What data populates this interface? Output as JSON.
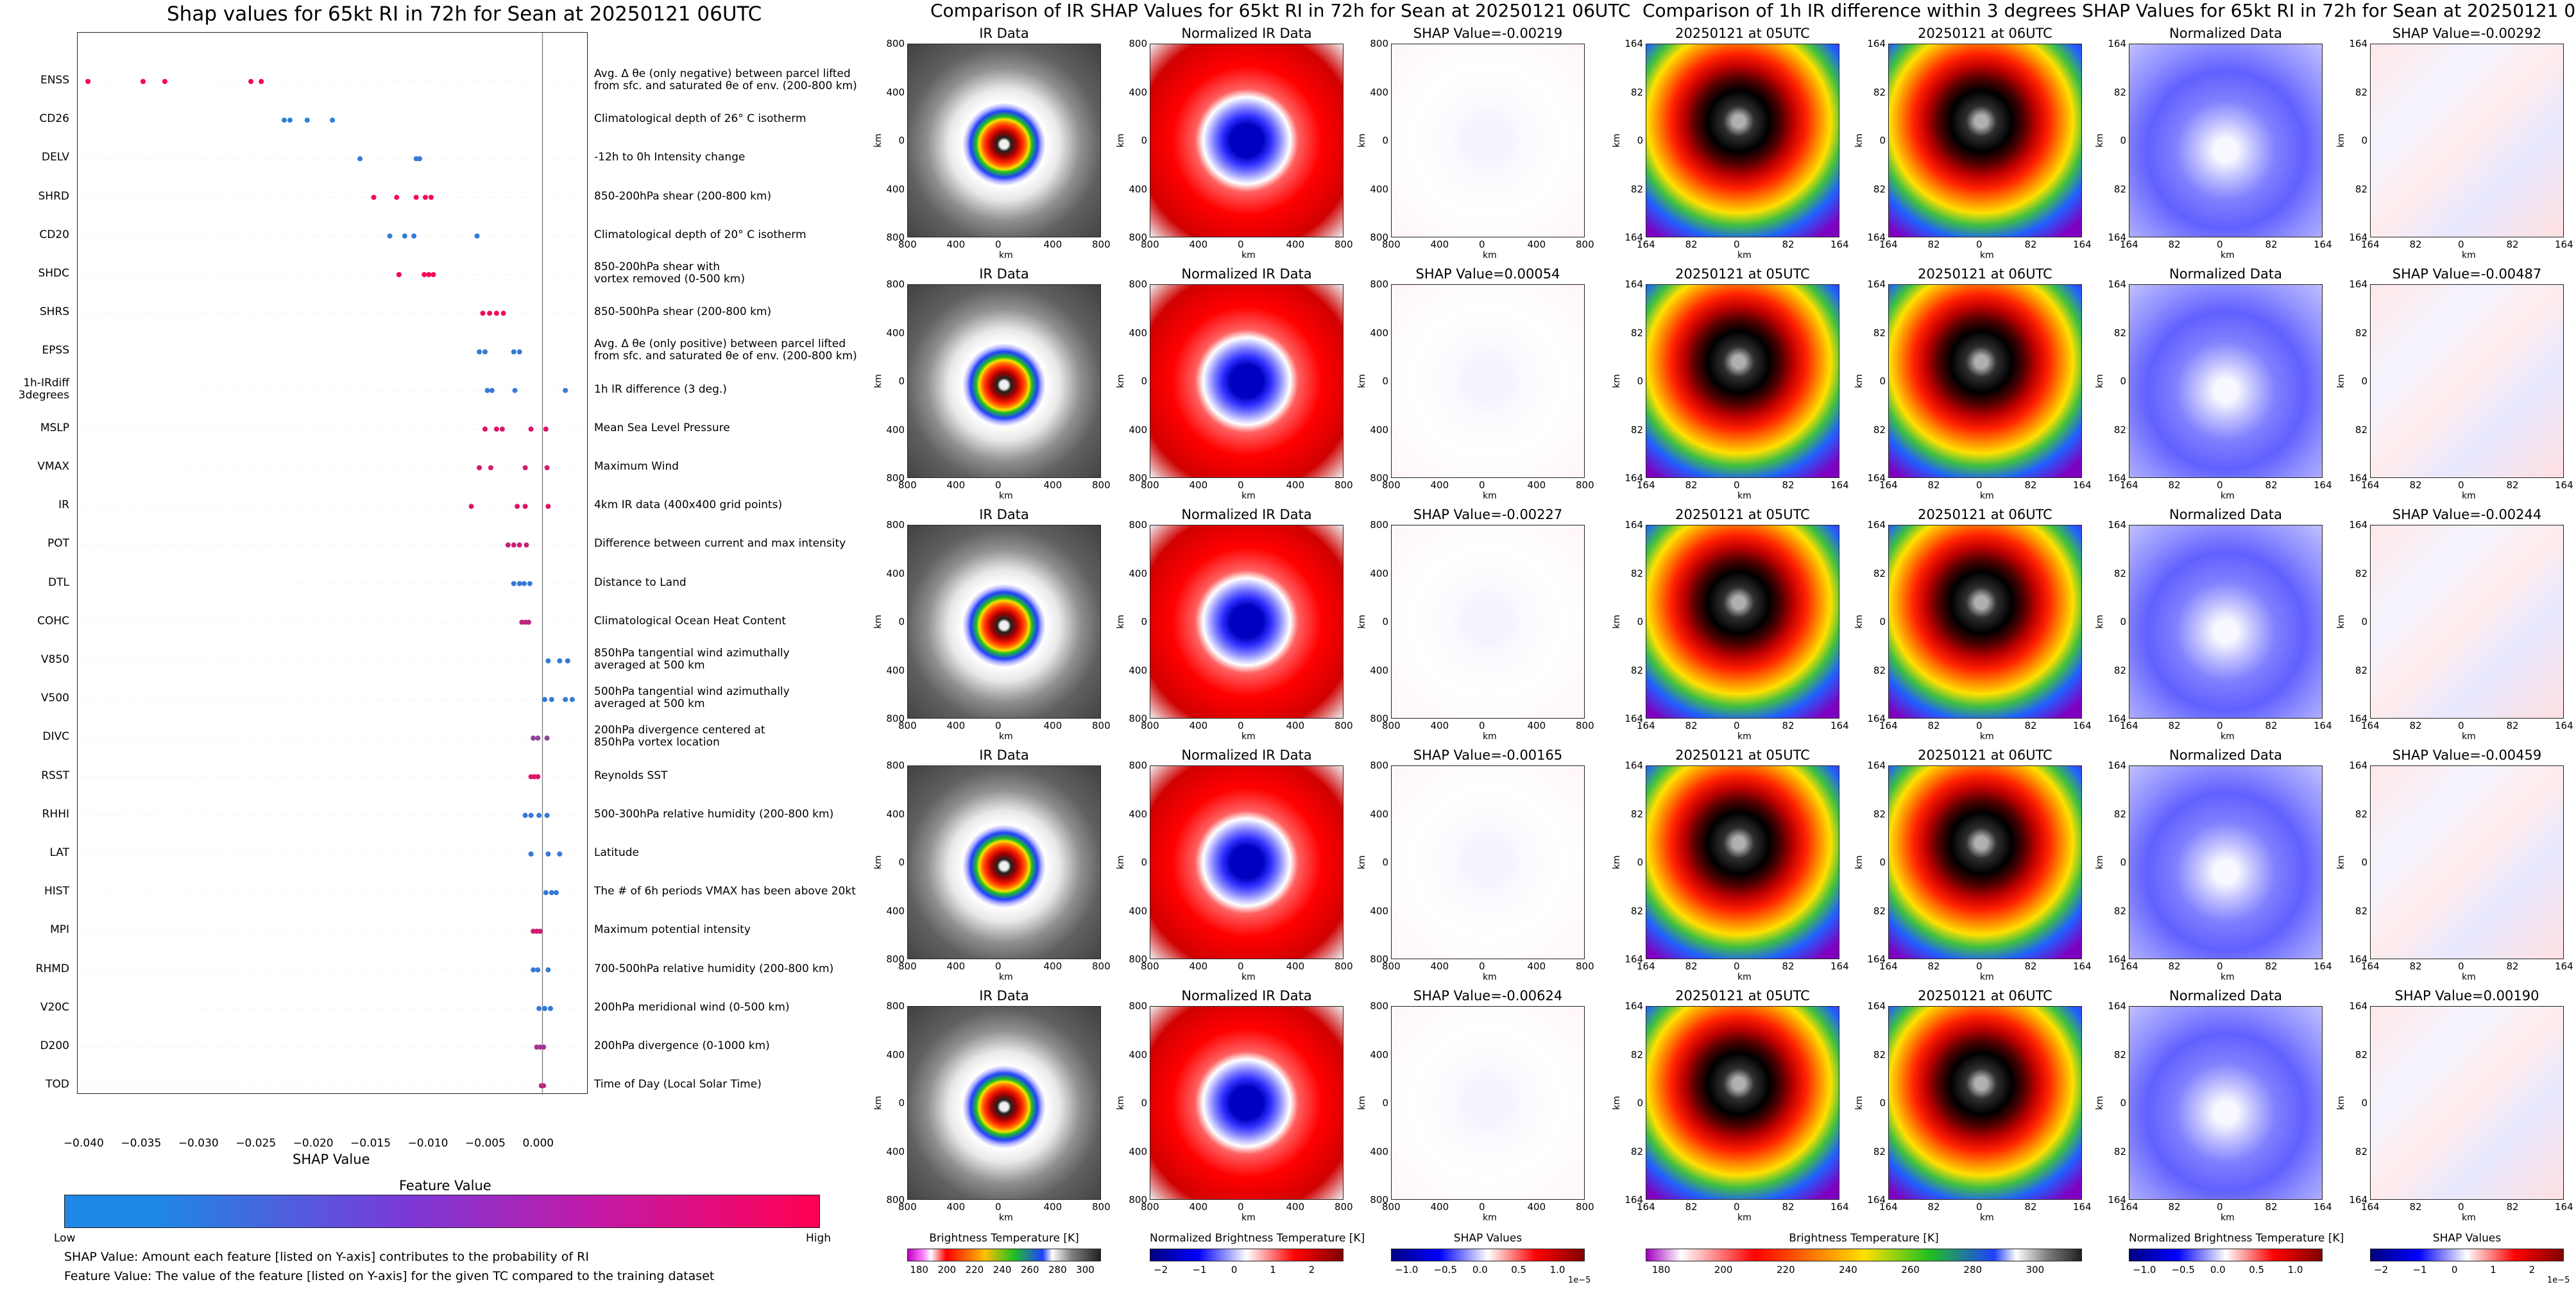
{
  "left": {
    "title": "Shap values for 65kt RI in 72h for Sean at 20250121 06UTC",
    "xlabel": "SHAP Value",
    "xticks": [
      "−0.040",
      "−0.035",
      "−0.030",
      "−0.025",
      "−0.020",
      "−0.015",
      "−0.010",
      "−0.005",
      "0.000"
    ],
    "colorbar_title": "Feature Value",
    "colorbar_low": "Low",
    "colorbar_high": "High",
    "footnote1": "SHAP Value: Amount each feature [listed on Y-axis] contributes to the probability of RI",
    "footnote2": "Feature Value: The value of the feature [listed on Y-axis] for the given TC compared to the training dataset"
  },
  "mid": {
    "title": "Comparison of IR SHAP Values for 65kt RI in 72h for Sean at 20250121 06UTC",
    "col_titles": [
      "IR Data",
      "Normalized IR Data"
    ],
    "shap_titles": [
      "SHAP Value=-0.00219",
      "SHAP Value=0.00054",
      "SHAP Value=-0.00227",
      "SHAP Value=-0.00165",
      "SHAP Value=-0.00624"
    ],
    "axis_label": "km",
    "ticks": [
      "800",
      "400",
      "0",
      "400",
      "800"
    ],
    "cbar1_label": "Brightness Temperature [K]",
    "cbar1_ticks": [
      "180",
      "200",
      "220",
      "240",
      "260",
      "280",
      "300"
    ],
    "cbar2_label": "Normalized Brightness Temperature [K]",
    "cbar2_ticks": [
      "−2",
      "−1",
      "0",
      "1",
      "2"
    ],
    "cbar3_label": "SHAP Values",
    "cbar3_ticks": [
      "−1.0",
      "−0.5",
      "0.0",
      "0.5",
      "1.0"
    ],
    "cbar3_exp": "1e−5"
  },
  "right": {
    "title": "Comparison of 1h IR difference within 3 degrees SHAP Values for 65kt RI in 72h for Sean at 20250121 06UTC",
    "col_titles": [
      "20250121 at 05UTC",
      "20250121 at 06UTC",
      "Normalized Data"
    ],
    "shap_titles": [
      "SHAP Value=-0.00292",
      "SHAP Value=-0.00487",
      "SHAP Value=-0.00244",
      "SHAP Value=-0.00459",
      "SHAP Value=0.00190"
    ],
    "axis_label": "km",
    "ticks": [
      "164",
      "82",
      "0",
      "82",
      "164"
    ],
    "cbar1_label": "Brightness Temperature [K]",
    "cbar1_ticks": [
      "180",
      "200",
      "220",
      "240",
      "260",
      "280",
      "300"
    ],
    "cbar2_label": "Normalized Brightness Temperature [K]",
    "cbar2_ticks": [
      "−1.0",
      "−0.5",
      "0.0",
      "0.5",
      "1.0"
    ],
    "cbar3_label": "SHAP Values",
    "cbar3_ticks": [
      "−2",
      "−1",
      "0",
      "1",
      "2"
    ],
    "cbar3_exp": "1e−5"
  },
  "chart_data": {
    "type": "scatter",
    "title": "Shap values for 65kt RI in 72h for Sean at 20250121 06UTC",
    "xlabel": "SHAP Value",
    "xlim": [
      -0.0405,
      0.004
    ],
    "colors": {
      "low": "#1e88e5",
      "high": "#ff0052"
    },
    "features": [
      {
        "name": "ENSS",
        "desc": "Avg. Δ θe (only negative) between parcel lifted\nfrom sfc. and saturated θe of env. (200-800 km)",
        "points": [
          [
            -0.0396,
            0.95
          ],
          [
            -0.0348,
            0.95
          ],
          [
            -0.0329,
            0.95
          ],
          [
            -0.0254,
            0.95
          ],
          [
            -0.0245,
            0.95
          ]
        ]
      },
      {
        "name": "CD26",
        "desc": "Climatological depth of 26° C isotherm",
        "points": [
          [
            -0.0225,
            0.05
          ],
          [
            -0.022,
            0.05
          ],
          [
            -0.0205,
            0.05
          ],
          [
            -0.0183,
            0.05
          ]
        ]
      },
      {
        "name": "DELV",
        "desc": "-12h to 0h Intensity change",
        "points": [
          [
            -0.0159,
            0.1
          ],
          [
            -0.011,
            0.1
          ],
          [
            -0.0107,
            0.1
          ]
        ]
      },
      {
        "name": "SHRD",
        "desc": "850-200hPa shear (200-800 km)",
        "points": [
          [
            -0.0147,
            0.95
          ],
          [
            -0.0127,
            0.95
          ],
          [
            -0.011,
            0.95
          ],
          [
            -0.0102,
            0.95
          ],
          [
            -0.0097,
            0.95
          ]
        ]
      },
      {
        "name": "CD20",
        "desc": "Climatological depth of 20° C isotherm",
        "points": [
          [
            -0.0133,
            0.1
          ],
          [
            -0.012,
            0.1
          ],
          [
            -0.0112,
            0.1
          ],
          [
            -0.0057,
            0.1
          ]
        ]
      },
      {
        "name": "SHDC",
        "desc": "850-200hPa shear with\nvortex removed (0-500 km)",
        "points": [
          [
            -0.0125,
            0.95
          ],
          [
            -0.0103,
            0.95
          ],
          [
            -0.0099,
            0.95
          ],
          [
            -0.0095,
            0.95
          ]
        ]
      },
      {
        "name": "SHRS",
        "desc": "850-500hPa shear (200-800 km)",
        "points": [
          [
            -0.0052,
            0.92
          ],
          [
            -0.0046,
            0.92
          ],
          [
            -0.004,
            0.92
          ],
          [
            -0.0034,
            0.92
          ]
        ]
      },
      {
        "name": "EPSS",
        "desc": "Avg. Δ θe (only positive) between parcel lifted\nfrom sfc. and saturated θe of env. (200-800 km)",
        "points": [
          [
            -0.0055,
            0.1
          ],
          [
            -0.005,
            0.1
          ],
          [
            -0.0025,
            0.1
          ],
          [
            -0.002,
            0.1
          ]
        ]
      },
      {
        "name": "1h-IRdiff\n3degrees",
        "desc": "1h IR difference (3 deg.)",
        "points": [
          [
            -0.0048,
            0.1
          ],
          [
            -0.0044,
            0.1
          ],
          [
            -0.0024,
            0.1
          ],
          [
            0.002,
            0.1
          ]
        ]
      },
      {
        "name": "MSLP",
        "desc": "Mean Sea Level Pressure",
        "points": [
          [
            -0.005,
            0.85
          ],
          [
            -0.004,
            0.85
          ],
          [
            -0.0035,
            0.85
          ],
          [
            -0.001,
            0.85
          ],
          [
            0.0003,
            0.85
          ]
        ]
      },
      {
        "name": "VMAX",
        "desc": "Maximum Wind",
        "points": [
          [
            -0.0055,
            0.8
          ],
          [
            -0.0045,
            0.8
          ],
          [
            -0.0015,
            0.8
          ],
          [
            0.0004,
            0.8
          ]
        ]
      },
      {
        "name": "IR",
        "desc": "4km IR data (400x400 grid points)",
        "points": [
          [
            -0.0062,
            0.85
          ],
          [
            -0.0022,
            0.85
          ],
          [
            -0.0015,
            0.85
          ],
          [
            0.0005,
            0.85
          ]
        ]
      },
      {
        "name": "POT",
        "desc": "Difference between current and max intensity",
        "points": [
          [
            -0.003,
            0.75
          ],
          [
            -0.0025,
            0.75
          ],
          [
            -0.002,
            0.75
          ],
          [
            -0.0014,
            0.75
          ]
        ]
      },
      {
        "name": "DTL",
        "desc": "Distance to Land",
        "points": [
          [
            -0.0025,
            0.1
          ],
          [
            -0.002,
            0.1
          ],
          [
            -0.0016,
            0.1
          ],
          [
            -0.0011,
            0.1
          ]
        ]
      },
      {
        "name": "COHC",
        "desc": "Climatological Ocean Heat Content",
        "points": [
          [
            -0.0018,
            0.7
          ],
          [
            -0.0015,
            0.7
          ],
          [
            -0.0012,
            0.7
          ]
        ]
      },
      {
        "name": "V850",
        "desc": "850hPa tangential wind azimuthally\naveraged at 500 km",
        "points": [
          [
            0.0005,
            0.1
          ],
          [
            0.0015,
            0.1
          ],
          [
            0.0022,
            0.1
          ]
        ]
      },
      {
        "name": "V500",
        "desc": "500hPa tangential wind azimuthally\naveraged at 500 km",
        "points": [
          [
            0.0002,
            0.1
          ],
          [
            0.0008,
            0.1
          ],
          [
            0.002,
            0.1
          ],
          [
            0.0026,
            0.1
          ]
        ]
      },
      {
        "name": "DIVC",
        "desc": "200hPa divergence centered at\n850hPa vortex location",
        "points": [
          [
            -0.0008,
            0.5
          ],
          [
            -0.0004,
            0.5
          ],
          [
            0.0004,
            0.5
          ]
        ]
      },
      {
        "name": "RSST",
        "desc": "Reynolds SST",
        "points": [
          [
            -0.001,
            0.85
          ],
          [
            -0.0007,
            0.85
          ],
          [
            -0.0004,
            0.85
          ]
        ]
      },
      {
        "name": "RHHI",
        "desc": "500-300hPa relative humidity (200-800 km)",
        "points": [
          [
            -0.0015,
            0.1
          ],
          [
            -0.001,
            0.1
          ],
          [
            -0.0003,
            0.1
          ],
          [
            0.0004,
            0.1
          ]
        ]
      },
      {
        "name": "LAT",
        "desc": "Latitude",
        "points": [
          [
            -0.001,
            0.1
          ],
          [
            0.0005,
            0.1
          ],
          [
            0.0015,
            0.1
          ]
        ]
      },
      {
        "name": "HIST",
        "desc": "The # of 6h periods VMAX has been above 20kt",
        "points": [
          [
            0.0003,
            0.1
          ],
          [
            0.0008,
            0.1
          ],
          [
            0.0012,
            0.1
          ]
        ]
      },
      {
        "name": "MPI",
        "desc": "Maximum potential intensity",
        "points": [
          [
            -0.0008,
            0.8
          ],
          [
            -0.0005,
            0.8
          ],
          [
            -0.0002,
            0.8
          ]
        ]
      },
      {
        "name": "RHMD",
        "desc": "700-500hPa relative humidity (200-800 km)",
        "points": [
          [
            -0.0008,
            0.1
          ],
          [
            -0.0004,
            0.1
          ],
          [
            0.0005,
            0.1
          ]
        ]
      },
      {
        "name": "V20C",
        "desc": "200hPa meridional wind (0-500 km)",
        "points": [
          [
            -0.0003,
            0.1
          ],
          [
            0.0002,
            0.1
          ],
          [
            0.0007,
            0.1
          ]
        ]
      },
      {
        "name": "D200",
        "desc": "200hPa divergence (0-1000 km)",
        "points": [
          [
            -0.0005,
            0.6
          ],
          [
            -0.0002,
            0.6
          ],
          [
            0.0001,
            0.6
          ]
        ]
      },
      {
        "name": "TOD",
        "desc": "Time of Day (Local Solar Time)",
        "points": [
          [
            -0.0001,
            0.7
          ],
          [
            0.0001,
            0.7
          ]
        ]
      }
    ]
  }
}
